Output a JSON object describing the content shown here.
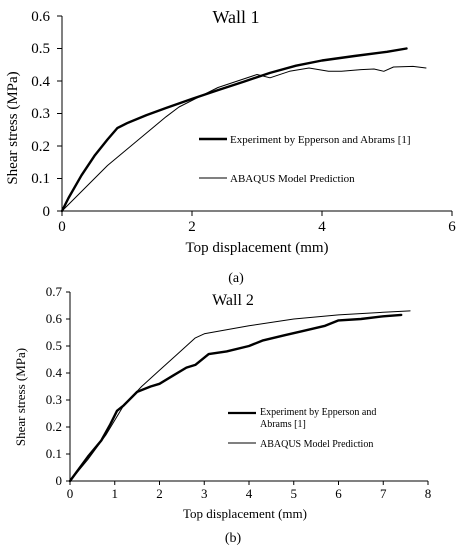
{
  "chart_data": [
    {
      "type": "line",
      "title": "Wall 1",
      "panel_label": "(a)",
      "xlabel": "Top displacement (mm)",
      "ylabel": "Shear stress (MPa)",
      "xlim": [
        0,
        6
      ],
      "ylim": [
        0,
        0.6
      ],
      "x_ticks": [
        "0",
        "2",
        "4",
        "6"
      ],
      "y_ticks": [
        "0",
        "0.1",
        "0.2",
        "0.3",
        "0.4",
        "0.5",
        "0.6"
      ],
      "grid": false,
      "legend": "right, inside",
      "series": [
        {
          "name": "Experiment by Epperson and Abrams [1]",
          "color": "#000000",
          "style": "thick",
          "x": [
            0,
            0.1,
            0.3,
            0.5,
            0.7,
            0.85,
            1.0,
            1.3,
            1.6,
            2.0,
            2.4,
            2.8,
            3.2,
            3.6,
            4.0,
            4.5,
            5.0,
            5.3
          ],
          "y": [
            0,
            0.04,
            0.11,
            0.17,
            0.22,
            0.255,
            0.27,
            0.295,
            0.317,
            0.345,
            0.372,
            0.398,
            0.425,
            0.447,
            0.463,
            0.477,
            0.49,
            0.5
          ]
        },
        {
          "name": "ABAQUS Model Prediction",
          "color": "#000000",
          "style": "thin",
          "x": [
            0,
            0.1,
            0.3,
            0.5,
            0.7,
            1.0,
            1.3,
            1.6,
            1.8,
            2.1,
            2.4,
            2.7,
            3.0,
            3.2,
            3.5,
            3.8,
            4.1,
            4.3,
            4.6,
            4.8,
            4.95,
            5.1,
            5.4,
            5.6
          ],
          "y": [
            0,
            0.02,
            0.06,
            0.1,
            0.14,
            0.19,
            0.24,
            0.29,
            0.32,
            0.35,
            0.38,
            0.4,
            0.42,
            0.41,
            0.43,
            0.44,
            0.43,
            0.43,
            0.435,
            0.437,
            0.43,
            0.443,
            0.445,
            0.44
          ]
        }
      ]
    },
    {
      "type": "line",
      "title": "Wall 2",
      "panel_label": "(b)",
      "xlabel": "Top displacement (mm)",
      "ylabel": "Shear stress (MPa)",
      "xlim": [
        0,
        8
      ],
      "ylim": [
        0,
        0.7
      ],
      "x_ticks": [
        "0",
        "1",
        "2",
        "3",
        "4",
        "5",
        "6",
        "7",
        "8"
      ],
      "y_ticks": [
        "0",
        "0.1",
        "0.2",
        "0.3",
        "0.4",
        "0.5",
        "0.6",
        "0.7"
      ],
      "grid": false,
      "legend": "right, inside",
      "series": [
        {
          "name": "Experiment by Epperson and Abrams [1]",
          "legend_lines": [
            "Experiment by Epperson and",
            "Abrams [1]"
          ],
          "color": "#000000",
          "style": "thick",
          "x": [
            0,
            0.4,
            0.7,
            0.9,
            1.05,
            1.2,
            1.5,
            1.8,
            2.0,
            2.3,
            2.6,
            2.8,
            3.1,
            3.5,
            4.0,
            4.3,
            4.8,
            5.2,
            5.7,
            6.0,
            6.5,
            7.0,
            7.4
          ],
          "y": [
            0,
            0.09,
            0.15,
            0.21,
            0.26,
            0.28,
            0.33,
            0.35,
            0.36,
            0.39,
            0.42,
            0.43,
            0.47,
            0.48,
            0.5,
            0.52,
            0.54,
            0.555,
            0.575,
            0.595,
            0.6,
            0.61,
            0.615
          ]
        },
        {
          "name": "ABAQUS Model Prediction",
          "color": "#000000",
          "style": "thin",
          "x": [
            0,
            0.4,
            0.8,
            1.2,
            1.6,
            2.0,
            2.4,
            2.8,
            3.0,
            3.5,
            4.0,
            5.0,
            6.0,
            7.0,
            7.6
          ],
          "y": [
            0,
            0.08,
            0.17,
            0.28,
            0.35,
            0.41,
            0.47,
            0.53,
            0.545,
            0.56,
            0.575,
            0.6,
            0.615,
            0.625,
            0.63
          ]
        }
      ]
    }
  ]
}
